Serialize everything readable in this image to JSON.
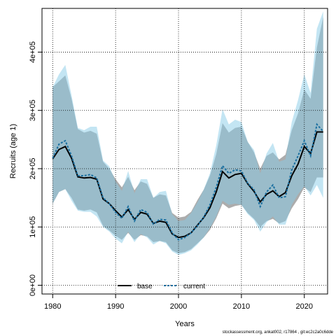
{
  "chart_data": {
    "type": "line",
    "title": "",
    "xlabel": "Years",
    "ylabel": "Recruits (age 1)",
    "xlim": [
      1978.3,
      2023.7
    ],
    "ylim": [
      -15000,
      475000
    ],
    "xticks": [
      1980,
      1990,
      2000,
      2010,
      2020
    ],
    "yticks": [
      0,
      100000,
      200000,
      300000,
      400000
    ],
    "ytick_labels": [
      "0e+00",
      "1e+05",
      "2e+05",
      "3e+05",
      "4e+05"
    ],
    "grid": true,
    "legend_position": "bottom",
    "x": [
      1980,
      1981,
      1982,
      1983,
      1984,
      1985,
      1986,
      1987,
      1988,
      1989,
      1990,
      1991,
      1992,
      1993,
      1994,
      1995,
      1996,
      1997,
      1998,
      1999,
      2000,
      2001,
      2002,
      2003,
      2004,
      2005,
      2006,
      2007,
      2008,
      2009,
      2010,
      2011,
      2012,
      2013,
      2014,
      2015,
      2016,
      2017,
      2018,
      2019,
      2020,
      2021,
      2022,
      2023
    ],
    "series": [
      {
        "name": "base",
        "color": "#000000",
        "band_color": "#808080",
        "values": [
          217000,
          233000,
          238000,
          218000,
          186000,
          184000,
          185000,
          182000,
          148000,
          140000,
          128000,
          117000,
          130000,
          113000,
          125000,
          122000,
          106000,
          110000,
          108000,
          88000,
          82000,
          84000,
          90000,
          103000,
          116000,
          133000,
          160000,
          195000,
          184000,
          190000,
          192000,
          174000,
          161000,
          143000,
          156000,
          162000,
          152000,
          159000,
          188000,
          208000,
          238000,
          226000,
          263000,
          263000
        ],
        "lower": [
          140000,
          160000,
          165000,
          150000,
          130000,
          128000,
          130000,
          125000,
          102000,
          94000,
          85000,
          78000,
          90000,
          78000,
          86000,
          84000,
          74000,
          76000,
          74000,
          60000,
          55000,
          57000,
          62000,
          72000,
          82000,
          95000,
          115000,
          140000,
          132000,
          136000,
          138000,
          124000,
          114000,
          100000,
          110000,
          114000,
          106000,
          110000,
          132000,
          148000,
          168000,
          160000,
          185000,
          185000
        ],
        "upper": [
          340000,
          350000,
          360000,
          320000,
          268000,
          262000,
          265000,
          260000,
          212000,
          200000,
          182000,
          168000,
          186000,
          163000,
          178000,
          174000,
          150000,
          156000,
          154000,
          124000,
          116000,
          118000,
          126000,
          146000,
          164000,
          188000,
          225000,
          278000,
          262000,
          270000,
          272000,
          246000,
          228000,
          200000,
          222000,
          228000,
          216000,
          224000,
          266000,
          295000,
          336000,
          320000,
          408000,
          460000
        ]
      },
      {
        "name": "current",
        "color": "#1a6fa0",
        "band_color": "#87cce8",
        "values": [
          218000,
          242000,
          248000,
          222000,
          188000,
          188000,
          190000,
          184000,
          150000,
          140000,
          125000,
          115000,
          135000,
          110000,
          130000,
          125000,
          105000,
          113000,
          112000,
          90000,
          78000,
          82000,
          90000,
          102000,
          117000,
          138000,
          168000,
          205000,
          192000,
          198000,
          196000,
          175000,
          164000,
          135000,
          160000,
          172000,
          150000,
          152000,
          198000,
          222000,
          248000,
          222000,
          276000,
          264000
        ],
        "lower": [
          140000,
          160000,
          165000,
          145000,
          128000,
          126000,
          126000,
          118000,
          100000,
          92000,
          80000,
          72000,
          92000,
          74000,
          88000,
          82000,
          70000,
          76000,
          72000,
          58000,
          52000,
          55000,
          60000,
          70000,
          82000,
          98000,
          118000,
          145000,
          138000,
          140000,
          138000,
          122000,
          112000,
          92000,
          108000,
          118000,
          104000,
          104000,
          138000,
          156000,
          170000,
          154000,
          172000,
          150000
        ],
        "upper": [
          340000,
          362000,
          378000,
          326000,
          270000,
          266000,
          272000,
          272000,
          214000,
          204000,
          178000,
          162000,
          196000,
          158000,
          182000,
          182000,
          150000,
          160000,
          162000,
          122000,
          110000,
          112000,
          124000,
          142000,
          164000,
          192000,
          240000,
          302000,
          276000,
          284000,
          280000,
          246000,
          232000,
          192000,
          226000,
          244000,
          212000,
          216000,
          280000,
          318000,
          362000,
          330000,
          440000,
          470000
        ]
      }
    ]
  },
  "footer": "stockassessment.org, ankat002, r17864 , git:ec2c2a0c6dde"
}
